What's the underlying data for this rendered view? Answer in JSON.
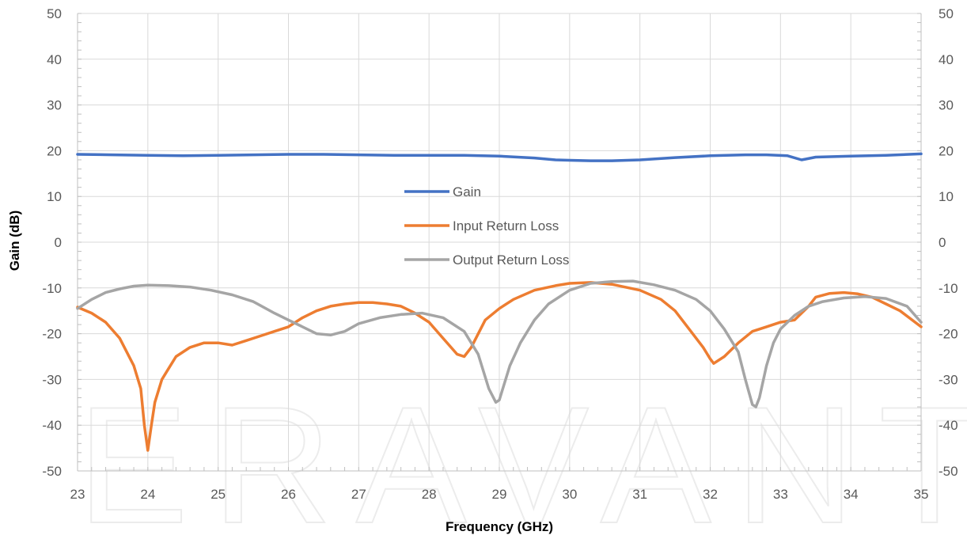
{
  "watermark": {
    "text": "ERAVANT",
    "color": "#ececec"
  },
  "chart_data": {
    "type": "line",
    "title": "",
    "xlabel": "Frequency (GHz)",
    "ylabel": "Gain (dB)",
    "xlim": [
      23,
      35
    ],
    "ylim": [
      -50,
      50
    ],
    "x_ticks": [
      23,
      24,
      25,
      26,
      27,
      28,
      29,
      30,
      31,
      32,
      33,
      34,
      35
    ],
    "y_ticks": [
      50,
      40,
      30,
      20,
      10,
      0,
      -10,
      -20,
      -30,
      -40,
      -50
    ],
    "y_ticks_right": [
      50,
      40,
      30,
      20,
      10,
      0,
      -10,
      -20,
      -30,
      -40,
      -50
    ],
    "grid": true,
    "legend_position": "center",
    "series": [
      {
        "name": "Gain",
        "color": "#4472c4",
        "x": [
          23,
          23.5,
          24,
          24.5,
          25,
          25.5,
          26,
          26.5,
          27,
          27.5,
          28,
          28.5,
          29,
          29.5,
          29.8,
          30,
          30.3,
          30.6,
          31,
          31.5,
          32,
          32.5,
          32.8,
          33.1,
          33.3,
          33.5,
          34,
          34.5,
          35
        ],
        "y": [
          19.2,
          19.1,
          19.0,
          18.9,
          19.0,
          19.1,
          19.2,
          19.2,
          19.1,
          19.0,
          19.0,
          19.0,
          18.8,
          18.4,
          18.0,
          17.9,
          17.8,
          17.8,
          18.0,
          18.5,
          18.9,
          19.1,
          19.1,
          18.9,
          18.0,
          18.6,
          18.8,
          19.0,
          19.3
        ]
      },
      {
        "name": "Input Return Loss",
        "color": "#ed7d31",
        "x": [
          23,
          23.2,
          23.4,
          23.6,
          23.8,
          23.9,
          23.95,
          24.0,
          24.05,
          24.1,
          24.2,
          24.3,
          24.4,
          24.6,
          24.8,
          25,
          25.2,
          25.4,
          25.6,
          25.8,
          26,
          26.2,
          26.4,
          26.6,
          26.8,
          27,
          27.2,
          27.4,
          27.6,
          27.8,
          28,
          28.2,
          28.4,
          28.5,
          28.6,
          28.8,
          29,
          29.2,
          29.5,
          29.8,
          30,
          30.3,
          30.6,
          31,
          31.3,
          31.5,
          31.7,
          31.9,
          32.0,
          32.05,
          32.2,
          32.4,
          32.6,
          32.8,
          33,
          33.2,
          33.4,
          33.5,
          33.7,
          33.9,
          34.1,
          34.3,
          34.5,
          34.7,
          35
        ],
        "y": [
          -14.2,
          -15.5,
          -17.5,
          -21,
          -27,
          -32,
          -40,
          -45.5,
          -40,
          -35,
          -30,
          -27.5,
          -25,
          -23,
          -22,
          -22,
          -22.5,
          -21.5,
          -20.5,
          -19.5,
          -18.5,
          -16.5,
          -15,
          -14,
          -13.5,
          -13.2,
          -13.2,
          -13.5,
          -14,
          -15.5,
          -17.5,
          -21,
          -24.5,
          -25,
          -23,
          -17,
          -14.5,
          -12.5,
          -10.5,
          -9.5,
          -9,
          -8.8,
          -9.2,
          -10.5,
          -12.5,
          -15,
          -19,
          -23,
          -25.5,
          -26.5,
          -25,
          -22,
          -19.5,
          -18.5,
          -17.5,
          -17,
          -14,
          -12,
          -11.2,
          -11,
          -11.3,
          -12,
          -13.5,
          -15,
          -18.5
        ]
      },
      {
        "name": "Output Return Loss",
        "color": "#a5a5a5",
        "x": [
          23,
          23.2,
          23.4,
          23.6,
          23.8,
          24,
          24.3,
          24.6,
          24.9,
          25.2,
          25.5,
          25.8,
          26.0,
          26.2,
          26.4,
          26.6,
          26.8,
          27.0,
          27.3,
          27.6,
          27.9,
          28.2,
          28.5,
          28.7,
          28.85,
          28.95,
          29.0,
          29.05,
          29.15,
          29.3,
          29.5,
          29.7,
          30,
          30.3,
          30.6,
          30.9,
          31.2,
          31.5,
          31.8,
          32.0,
          32.2,
          32.4,
          32.5,
          32.6,
          32.65,
          32.7,
          32.8,
          32.9,
          33.0,
          33.2,
          33.4,
          33.6,
          33.9,
          34.2,
          34.5,
          34.8,
          35
        ],
        "y": [
          -14.5,
          -12.5,
          -11,
          -10.2,
          -9.6,
          -9.4,
          -9.5,
          -9.8,
          -10.5,
          -11.5,
          -13,
          -15.5,
          -17,
          -18.5,
          -20,
          -20.3,
          -19.5,
          -17.8,
          -16.5,
          -15.8,
          -15.5,
          -16.5,
          -19.5,
          -24.5,
          -32,
          -35,
          -34.5,
          -32,
          -27,
          -22,
          -17,
          -13.5,
          -10.5,
          -9,
          -8.6,
          -8.5,
          -9.3,
          -10.5,
          -12.5,
          -15,
          -19,
          -24,
          -30,
          -35.5,
          -36,
          -34,
          -27,
          -22,
          -19,
          -16,
          -14,
          -13,
          -12.2,
          -11.9,
          -12.3,
          -14,
          -17.5
        ]
      }
    ]
  }
}
